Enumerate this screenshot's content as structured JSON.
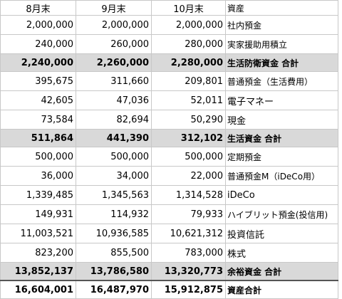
{
  "header": {
    "col1": "8月末",
    "col2": "9月末",
    "col3": "10月末",
    "col4": "資産"
  },
  "rows": [
    {
      "kind": "row",
      "aug": "2,000,000",
      "sep": "2,000,000",
      "oct": "2,000,000",
      "label": "社内預金"
    },
    {
      "kind": "row",
      "aug": "240,000",
      "sep": "260,000",
      "oct": "280,000",
      "label": "実家援助用積立"
    },
    {
      "kind": "sub",
      "aug": "2,240,000",
      "sep": "2,260,000",
      "oct": "2,280,000",
      "label": "生活防衛資金 合計"
    },
    {
      "kind": "row",
      "aug": "395,675",
      "sep": "311,660",
      "oct": "209,801",
      "label": "普通預金（生活費用）"
    },
    {
      "kind": "row",
      "aug": "42,605",
      "sep": "47,036",
      "oct": "52,011",
      "label": "電子マネー"
    },
    {
      "kind": "row",
      "aug": "73,584",
      "sep": "82,694",
      "oct": "50,290",
      "label": "現金"
    },
    {
      "kind": "sub",
      "aug": "511,864",
      "sep": "441,390",
      "oct": "312,102",
      "label": "生活資金 合計"
    },
    {
      "kind": "row",
      "aug": "500,000",
      "sep": "500,000",
      "oct": "500,000",
      "label": "定期預金"
    },
    {
      "kind": "row",
      "aug": "36,000",
      "sep": "34,000",
      "oct": "22,000",
      "label": "普通預金M（iDeCo用）"
    },
    {
      "kind": "row",
      "aug": "1,339,485",
      "sep": "1,345,563",
      "oct": "1,314,528",
      "label": "iDeCo"
    },
    {
      "kind": "row",
      "aug": "149,931",
      "sep": "114,932",
      "oct": "79,933",
      "label": "ハイブリット預金(投信用)"
    },
    {
      "kind": "row",
      "aug": "11,003,521",
      "sep": "10,936,585",
      "oct": "10,621,312",
      "label": "投資信託"
    },
    {
      "kind": "row",
      "aug": "823,200",
      "sep": "855,500",
      "oct": "783,000",
      "label": "株式"
    },
    {
      "kind": "sub",
      "aug": "13,852,137",
      "sep": "13,786,580",
      "oct": "13,320,773",
      "label": "余裕資金 合計"
    },
    {
      "kind": "total",
      "aug": "16,604,001",
      "sep": "16,487,970",
      "oct": "15,912,875",
      "label": "資産合計"
    }
  ]
}
